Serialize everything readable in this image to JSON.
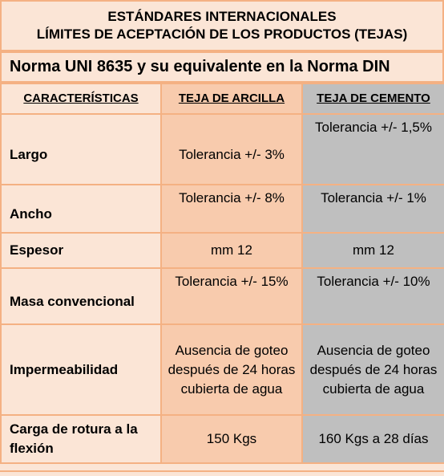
{
  "header": {
    "title_line1": "ESTÁNDARES INTERNACIONALES",
    "title_line2": "LÍMITES DE ACEPTACIÓN DE LOS PRODUCTOS (TEJAS)",
    "subtitle": "Norma UNI 8635 y su equivalente en la Norma DIN"
  },
  "table": {
    "columns": [
      "CARACTERÍSTICAS",
      "TEJA DE ARCILLA",
      "TEJA DE CEMENTO"
    ],
    "rows": [
      {
        "caracteristica": "Largo",
        "arcilla": "Tolerancia +/- 3%",
        "cemento": "Tolerancia +/- 1,5%"
      },
      {
        "caracteristica": "Ancho",
        "arcilla": "Tolerancia +/- 8%",
        "cemento": "Tolerancia +/- 1%"
      },
      {
        "caracteristica": "Espesor",
        "arcilla": "mm 12",
        "cemento": "mm 12"
      },
      {
        "caracteristica": "Masa convencional",
        "arcilla": "Tolerancia +/- 15%",
        "cemento": "Tolerancia +/- 10%"
      },
      {
        "caracteristica": "Impermeabilidad",
        "arcilla": "Ausencia de goteo después de 24 horas cubierta de agua",
        "cemento": "Ausencia de goteo después de 24 horas cubierta de agua"
      },
      {
        "caracteristica": "Carga de rotura a la flexión",
        "arcilla": "150 Kgs",
        "cemento": "160 Kgs a 28 días"
      }
    ]
  },
  "colors": {
    "peach_light": "#fbe5d6",
    "peach": "#f8cbad",
    "border": "#f4b183",
    "gray": "#bfbfbf"
  }
}
